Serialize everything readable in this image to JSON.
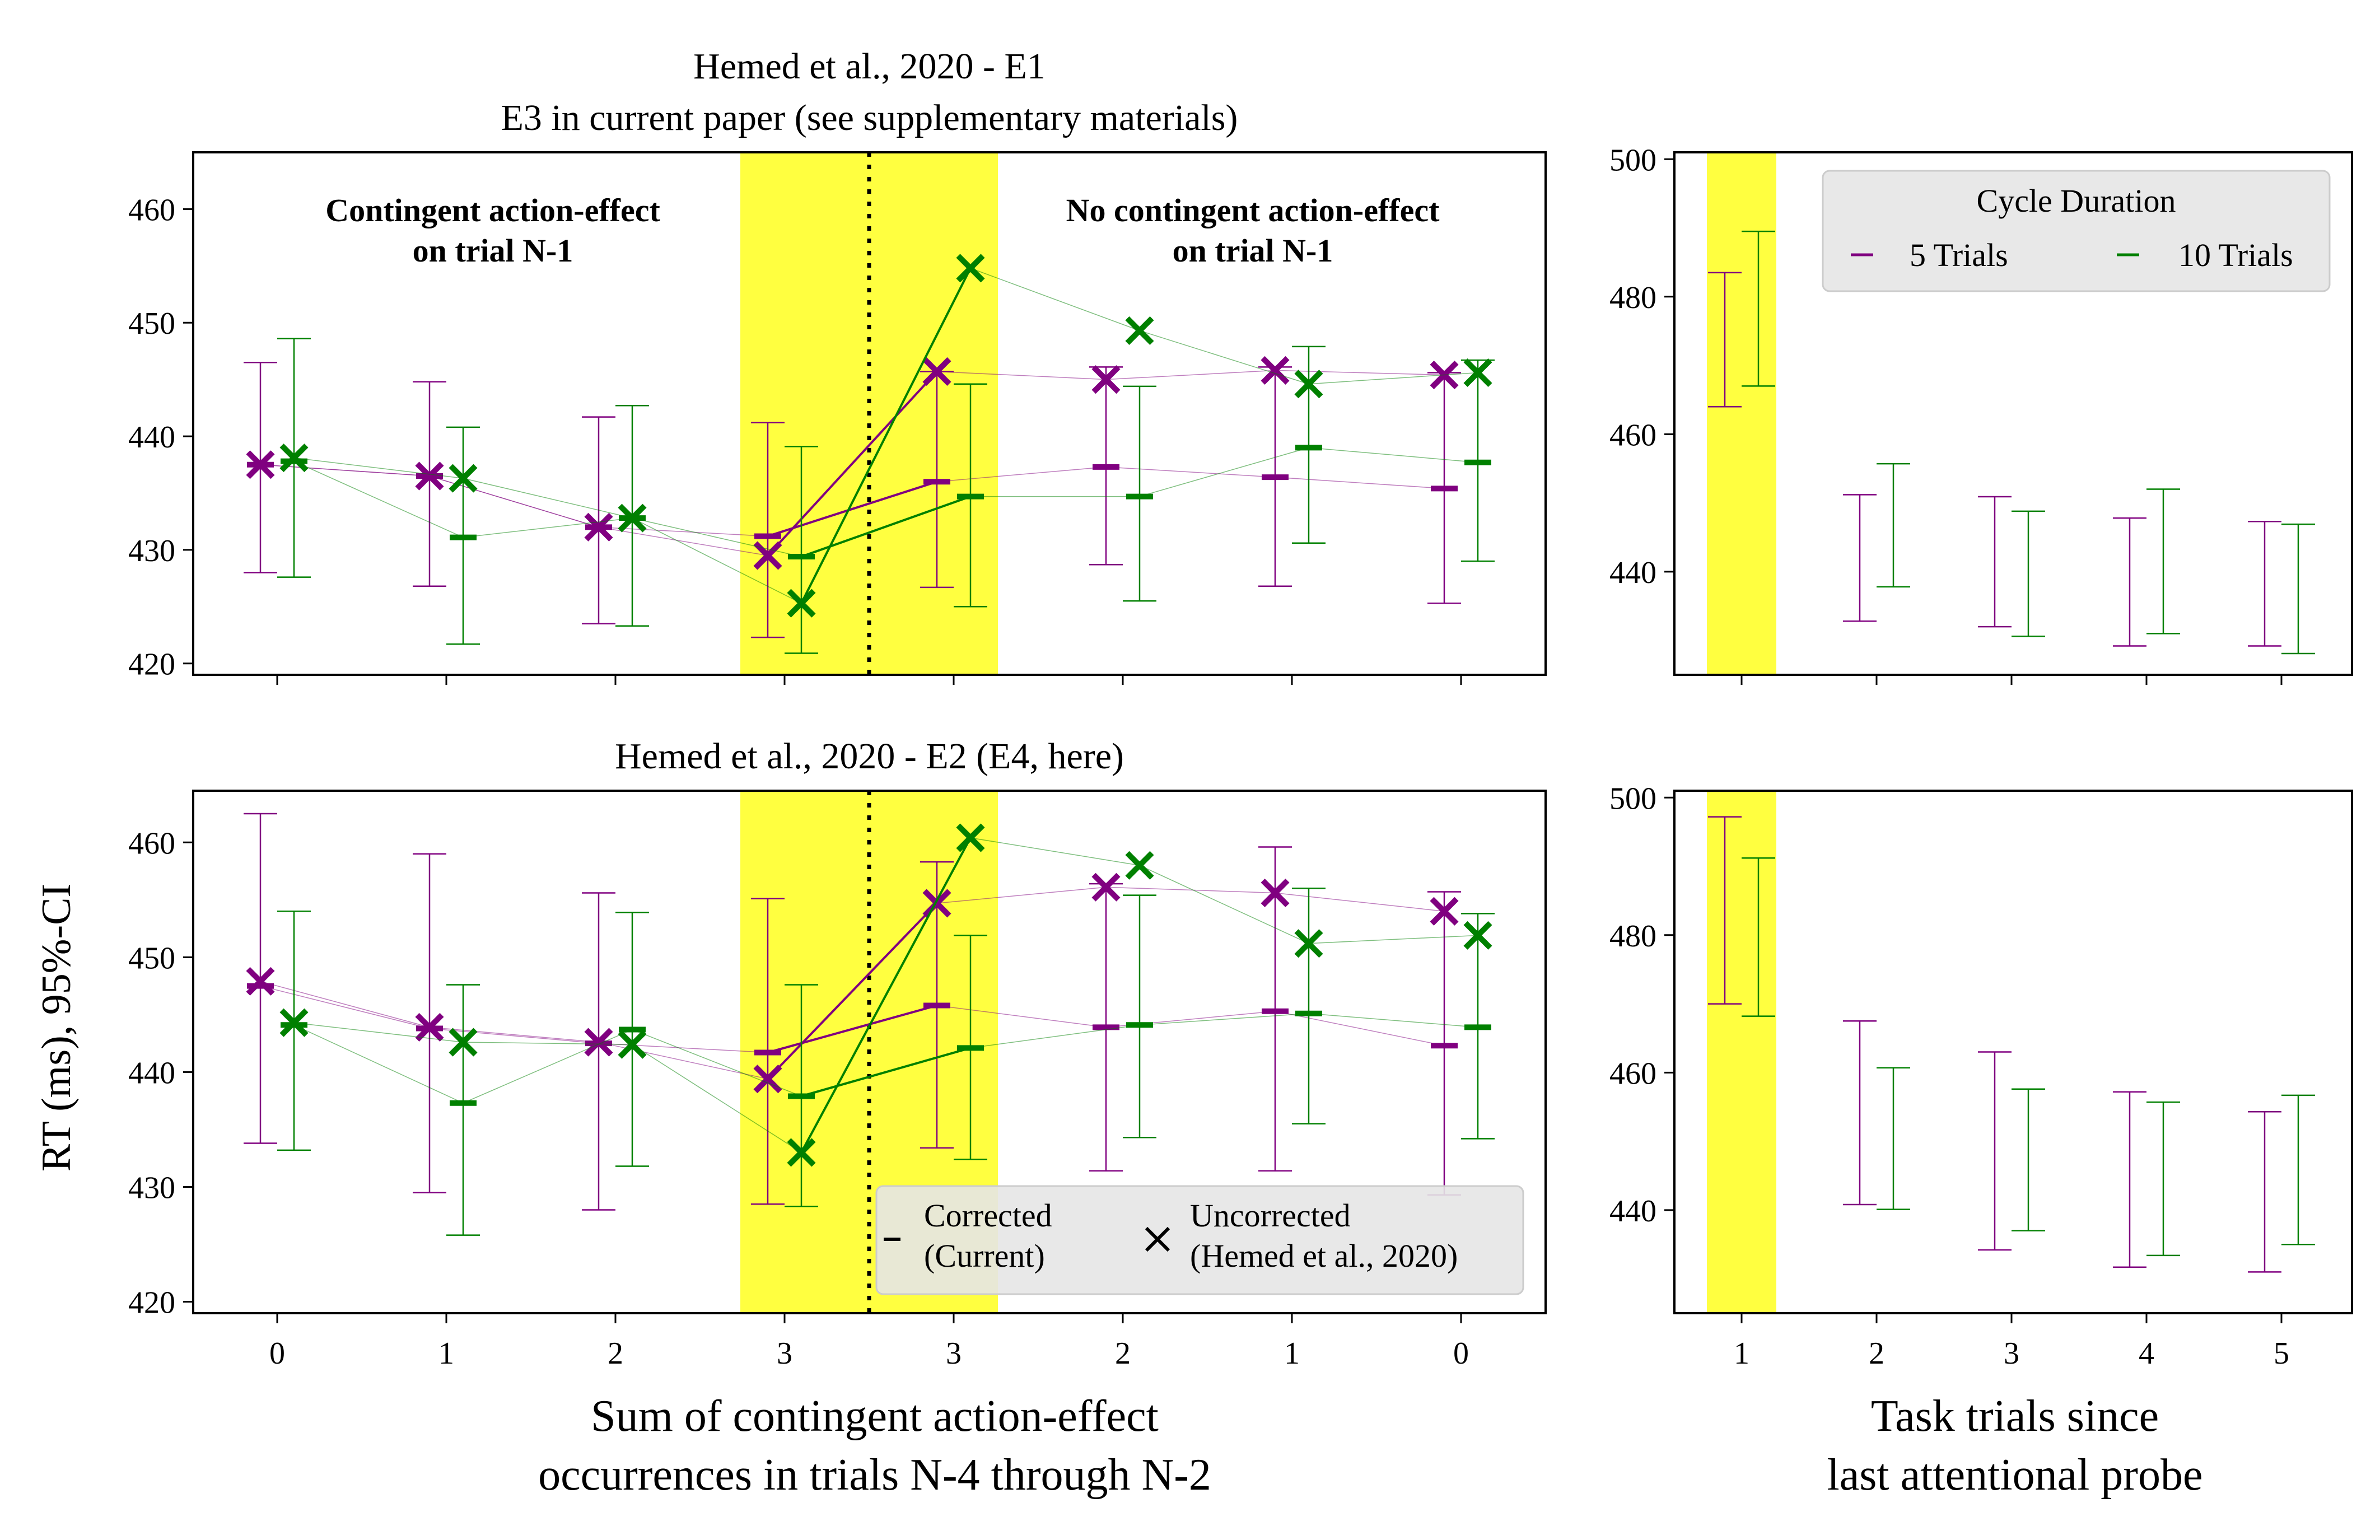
{
  "figure": {
    "ylabel": "RT (ms), 95%-CI",
    "left_xlabel": [
      "Sum of contingent action-effect",
      "occurrences in trials N-4 through N-2"
    ],
    "right_xlabel": [
      "Task trials since",
      "last attentional probe"
    ]
  },
  "colors": {
    "purple": "#800080",
    "green": "#008000",
    "highlight": "#ffff40"
  },
  "chart_data": [
    {
      "id": "top-left",
      "type": "line",
      "title": [
        "Hemed et al., 2020 - E1",
        "E3 in current paper (see supplementary materials)"
      ],
      "categories": [
        "0",
        "1",
        "2",
        "3",
        "3",
        "2",
        "1",
        "0"
      ],
      "ylim": [
        419,
        465
      ],
      "yticks": [
        420,
        430,
        440,
        450,
        460
      ],
      "annotations": [
        {
          "lines": [
            "Contingent action-effect",
            "on trial N-1"
          ],
          "position": "top-left"
        },
        {
          "lines": [
            "No contingent action-effect",
            "on trial N-1"
          ],
          "position": "top-right"
        }
      ],
      "series": [
        {
          "name": "5 Trials",
          "color": "purple",
          "corrected": [
            437.5,
            436.5,
            432,
            431.2,
            436,
            437.3,
            436.4,
            435.4
          ],
          "ci_low": [
            428,
            426.8,
            423.5,
            422.3,
            426.7,
            428.7,
            426.8,
            425.3
          ],
          "ci_high": [
            446.5,
            444.8,
            441.7,
            441.2,
            445.7,
            446.1,
            446.1,
            445.6
          ],
          "uncorrected": [
            437.5,
            436.5,
            432,
            429.5,
            445.7,
            445,
            445.8,
            445.4
          ]
        },
        {
          "name": "10 Trials",
          "color": "green",
          "corrected": [
            437.8,
            431.1,
            432.8,
            429.4,
            434.7,
            434.7,
            439,
            437.7
          ],
          "ci_low": [
            427.6,
            421.7,
            423.3,
            420.9,
            425,
            425.5,
            430.6,
            429
          ],
          "ci_high": [
            448.6,
            440.8,
            442.7,
            439.1,
            444.6,
            444.4,
            447.9,
            446.7
          ],
          "uncorrected": [
            438.1,
            436.3,
            432.8,
            425.3,
            454.8,
            449.3,
            444.6,
            445.6
          ]
        }
      ]
    },
    {
      "id": "bottom-left",
      "type": "line",
      "title": [
        "Hemed et al., 2020 - E2 (E4, here)"
      ],
      "categories": [
        "0",
        "1",
        "2",
        "3",
        "3",
        "2",
        "1",
        "0"
      ],
      "ylim": [
        419,
        464.5
      ],
      "yticks": [
        420,
        430,
        440,
        450,
        460
      ],
      "legend": {
        "position": "lower-right",
        "entries": [
          {
            "marker": "dash",
            "lines": [
              "Corrected",
              "(Current)"
            ]
          },
          {
            "marker": "cross",
            "lines": [
              "Uncorrected",
              "(Hemed et al., 2020)"
            ]
          }
        ]
      },
      "series": [
        {
          "name": "5 Trials",
          "color": "purple",
          "corrected": [
            447.5,
            443.8,
            442.5,
            441.7,
            445.8,
            443.9,
            445.3,
            442.3
          ],
          "ci_low": [
            433.8,
            429.5,
            428,
            428.5,
            433.4,
            431.4,
            431.4,
            429.3
          ],
          "ci_high": [
            462.5,
            459,
            455.6,
            455.1,
            458.3,
            456.4,
            459.6,
            455.7
          ],
          "uncorrected": [
            447.9,
            443.9,
            442.6,
            439.4,
            454.7,
            456.1,
            455.6,
            454
          ]
        },
        {
          "name": "10 Trials",
          "color": "green",
          "corrected": [
            444.1,
            437.3,
            443.7,
            437.9,
            442.1,
            444.1,
            445.1,
            443.9
          ],
          "ci_low": [
            433.2,
            425.8,
            431.8,
            428.3,
            432.4,
            434.3,
            435.5,
            434.2
          ],
          "ci_high": [
            454,
            447.6,
            453.9,
            447.6,
            451.9,
            455.4,
            456,
            453.8
          ],
          "uncorrected": [
            444.3,
            442.6,
            442.4,
            433,
            460.4,
            458,
            451.2,
            451.9
          ]
        }
      ]
    },
    {
      "id": "top-right",
      "type": "errorbar",
      "categories": [
        "1",
        "2",
        "3",
        "4",
        "5"
      ],
      "xlabel": "",
      "ylim": [
        425,
        501
      ],
      "yticks": [
        440,
        460,
        480,
        500
      ],
      "legend": {
        "title": "Cycle Duration",
        "position": "top-right",
        "entries": [
          "5 Trials",
          "10 Trials"
        ]
      },
      "series": [
        {
          "name": "5 Trials",
          "color": "purple",
          "ci_low": [
            464,
            432.8,
            432,
            429.2,
            429.2
          ],
          "ci_high": [
            483.5,
            451.2,
            450.9,
            447.8,
            447.3
          ]
        },
        {
          "name": "10 Trials",
          "color": "green",
          "ci_low": [
            467,
            437.8,
            430.6,
            431,
            428.1
          ],
          "ci_high": [
            489.5,
            455.7,
            448.8,
            452,
            446.9
          ]
        }
      ]
    },
    {
      "id": "bottom-right",
      "type": "errorbar",
      "categories": [
        "1",
        "2",
        "3",
        "4",
        "5"
      ],
      "ylim": [
        425,
        501
      ],
      "yticks": [
        440,
        460,
        480,
        500
      ],
      "series": [
        {
          "name": "5 Trials",
          "color": "purple",
          "ci_low": [
            470,
            440.8,
            434.2,
            431.7,
            431
          ],
          "ci_high": [
            497.2,
            467.5,
            463,
            457.2,
            454.3
          ]
        },
        {
          "name": "10 Trials",
          "color": "green",
          "ci_low": [
            468.2,
            440.1,
            437,
            433.4,
            435
          ],
          "ci_high": [
            491.2,
            460.7,
            457.6,
            455.7,
            456.7
          ]
        }
      ]
    }
  ]
}
